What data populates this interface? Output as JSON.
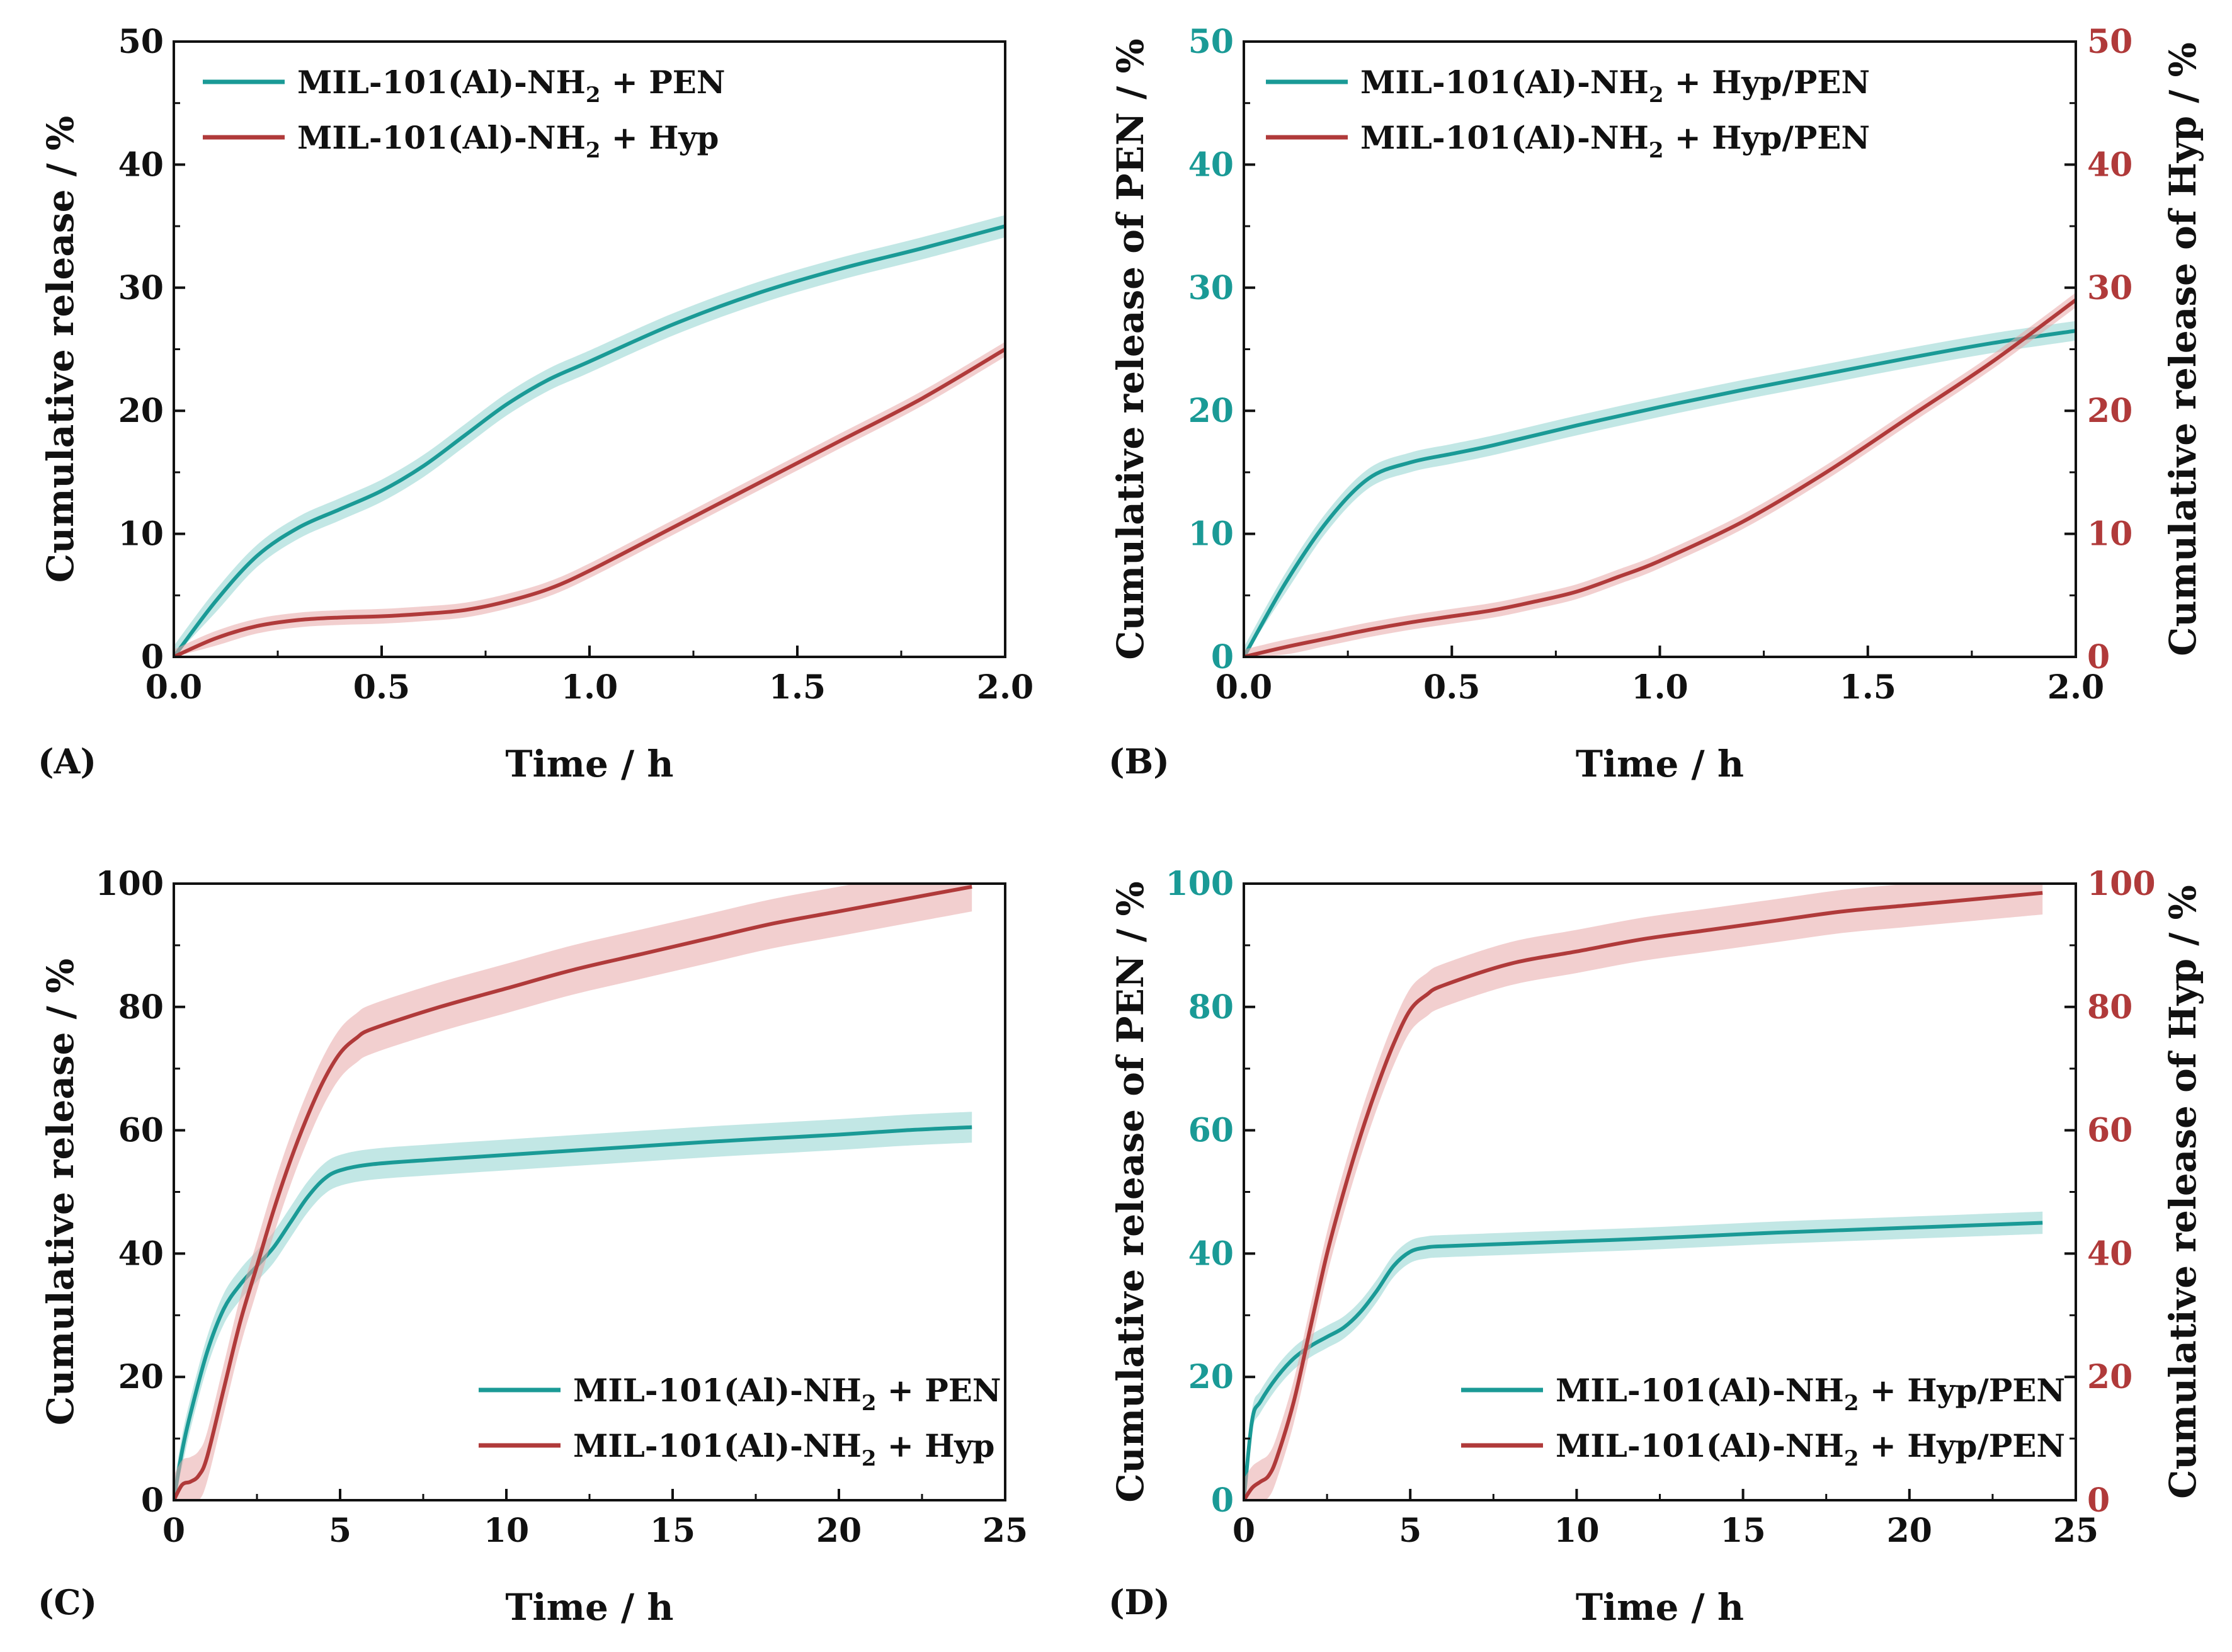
{
  "figure": {
    "colors": {
      "teal": "#1a9a96",
      "red": "#b03a3a",
      "tealBand": "#8fd3d0",
      "redBand": "#e8a8a8",
      "axis": "#111111"
    }
  },
  "chart_data": [
    {
      "id": "A",
      "panel_label": "(A)",
      "type": "line",
      "xlabel": "Time / h",
      "ylabel": "Cumulative release / %",
      "xlim": [
        0,
        2.0
      ],
      "ylim": [
        0,
        50
      ],
      "xticks": [
        "0.0",
        "0.5",
        "1.0",
        "1.5",
        "2.0"
      ],
      "yticks": [
        "0",
        "10",
        "20",
        "30",
        "40",
        "50"
      ],
      "legend_position": "top-left",
      "series": [
        {
          "name": "MIL-101(Al)-NH2 + PEN",
          "legend_parts": [
            "MIL-101(Al)-NH",
            "2",
            " + PEN"
          ],
          "color": "teal",
          "band": 0.9,
          "x": [
            0,
            0.1,
            0.2,
            0.3,
            0.4,
            0.5,
            0.6,
            0.7,
            0.8,
            0.9,
            1.0,
            1.2,
            1.4,
            1.6,
            1.8,
            2.0
          ],
          "y": [
            0,
            4.5,
            8.2,
            10.5,
            12.0,
            13.5,
            15.5,
            18.0,
            20.5,
            22.5,
            24.0,
            27.0,
            29.5,
            31.5,
            33.2,
            35.0
          ]
        },
        {
          "name": "MIL-101(Al)-NH2 + Hyp",
          "legend_parts": [
            "MIL-101(Al)-NH",
            "2",
            " + Hyp"
          ],
          "color": "red",
          "band": 0.6,
          "x": [
            0,
            0.1,
            0.2,
            0.3,
            0.4,
            0.5,
            0.6,
            0.7,
            0.8,
            0.9,
            1.0,
            1.2,
            1.4,
            1.6,
            1.8,
            2.0
          ],
          "y": [
            0,
            1.5,
            2.5,
            3.0,
            3.2,
            3.3,
            3.5,
            3.8,
            4.5,
            5.5,
            7.0,
            10.5,
            14.0,
            17.5,
            21.0,
            25.0
          ]
        }
      ]
    },
    {
      "id": "B",
      "panel_label": "(B)",
      "type": "line",
      "xlabel": "Time / h",
      "ylabel": "Cumulative release of PEN / %",
      "ylabel_right": "Cumulative release of Hyp / %",
      "xlim": [
        0,
        2.0
      ],
      "ylim": [
        0,
        50
      ],
      "ylim_right": [
        0,
        50
      ],
      "xticks": [
        "0.0",
        "0.5",
        "1.0",
        "1.5",
        "2.0"
      ],
      "yticks": [
        "0",
        "10",
        "20",
        "30",
        "40",
        "50"
      ],
      "yticks_right": [
        "0",
        "10",
        "20",
        "30",
        "40",
        "50"
      ],
      "legend_position": "top-left",
      "series": [
        {
          "name": "MIL-101(Al)-NH2 + Hyp/PEN",
          "legend_parts": [
            "MIL-101(Al)-NH",
            "2",
            " + Hyp/PEN"
          ],
          "color": "teal",
          "band": 0.8,
          "x": [
            0,
            0.1,
            0.2,
            0.3,
            0.4,
            0.5,
            0.6,
            0.8,
            1.0,
            1.2,
            1.4,
            1.6,
            1.8,
            2.0
          ],
          "y": [
            0,
            6.0,
            11.0,
            14.5,
            15.8,
            16.5,
            17.2,
            18.8,
            20.3,
            21.7,
            23.0,
            24.3,
            25.5,
            26.5
          ]
        },
        {
          "name": "MIL-101(Al)-NH2 + Hyp/PEN",
          "legend_parts": [
            "MIL-101(Al)-NH",
            "2",
            " + Hyp/PEN"
          ],
          "color": "red",
          "band": 0.6,
          "axis": "right",
          "x": [
            0,
            0.1,
            0.2,
            0.3,
            0.4,
            0.5,
            0.6,
            0.7,
            0.8,
            0.9,
            1.0,
            1.2,
            1.4,
            1.6,
            1.8,
            2.0
          ],
          "y": [
            0,
            0.8,
            1.5,
            2.2,
            2.8,
            3.3,
            3.8,
            4.5,
            5.3,
            6.5,
            7.8,
            11.0,
            15.0,
            19.5,
            24.0,
            29.0
          ]
        }
      ]
    },
    {
      "id": "C",
      "panel_label": "(C)",
      "type": "line",
      "xlabel": "Time / h",
      "ylabel": "Cumulative release / %",
      "xlim": [
        0,
        25
      ],
      "ylim": [
        0,
        100
      ],
      "xticks": [
        "0",
        "5",
        "10",
        "15",
        "20",
        "25"
      ],
      "yticks": [
        "0",
        "20",
        "40",
        "60",
        "80",
        "100"
      ],
      "legend_position": "bottom-right",
      "series": [
        {
          "name": "MIL-101(Al)-NH2 + PEN",
          "legend_parts": [
            "MIL-101(Al)-NH",
            "2",
            " + PEN"
          ],
          "color": "teal",
          "band": 2.5,
          "x": [
            0,
            0.25,
            0.5,
            1,
            1.5,
            2,
            2.5,
            3,
            3.5,
            4,
            4.5,
            5,
            6,
            8,
            10,
            12,
            14,
            16,
            18,
            20,
            22,
            24
          ],
          "y": [
            0,
            8,
            14,
            24,
            31,
            35,
            38,
            41,
            45,
            49,
            52,
            53.5,
            54.5,
            55.3,
            56.0,
            56.7,
            57.4,
            58.1,
            58.7,
            59.3,
            60.0,
            60.5
          ]
        },
        {
          "name": "MIL-101(Al)-NH2 + Hyp",
          "legend_parts": [
            "MIL-101(Al)-NH",
            "2",
            " + Hyp"
          ],
          "color": "red",
          "band": 4,
          "x": [
            0,
            0.25,
            0.5,
            0.75,
            1,
            1.5,
            2,
            2.5,
            3,
            3.5,
            4,
            4.5,
            5,
            5.5,
            6,
            8,
            10,
            12,
            14,
            16,
            18,
            20,
            22,
            24
          ],
          "y": [
            0,
            2.5,
            3,
            4,
            7,
            18,
            29,
            38,
            47,
            55,
            62,
            68,
            72.5,
            75,
            76.5,
            80,
            83,
            86,
            88.5,
            91,
            93.5,
            95.5,
            97.5,
            99.5
          ]
        }
      ]
    },
    {
      "id": "D",
      "panel_label": "(D)",
      "type": "line",
      "xlabel": "Time / h",
      "ylabel": "Cumulative release of PEN / %",
      "ylabel_right": "Cumulative release of Hyp / %",
      "xlim": [
        0,
        25
      ],
      "ylim": [
        0,
        100
      ],
      "ylim_right": [
        0,
        100
      ],
      "xticks": [
        "0",
        "5",
        "10",
        "15",
        "20",
        "25"
      ],
      "yticks": [
        "0",
        "20",
        "40",
        "60",
        "80",
        "100"
      ],
      "yticks_right": [
        "0",
        "20",
        "40",
        "60",
        "80",
        "100"
      ],
      "legend_position": "bottom-right",
      "series": [
        {
          "name": "MIL-101(Al)-NH2 + Hyp/PEN",
          "legend_parts": [
            "MIL-101(Al)-NH",
            "2",
            " + Hyp/PEN"
          ],
          "color": "teal",
          "band": 1.8,
          "x": [
            0,
            0.25,
            0.5,
            1,
            1.5,
            2,
            2.5,
            3,
            3.5,
            4,
            4.5,
            5,
            5.5,
            6,
            8,
            10,
            12,
            14,
            16,
            18,
            20,
            22,
            24
          ],
          "y": [
            0,
            13,
            16,
            20,
            23,
            25,
            26.5,
            28,
            30.5,
            34,
            38,
            40.3,
            41,
            41.2,
            41.6,
            42.0,
            42.4,
            42.9,
            43.4,
            43.8,
            44.2,
            44.6,
            45.0
          ]
        },
        {
          "name": "MIL-101(Al)-NH2 + Hyp/PEN",
          "legend_parts": [
            "MIL-101(Al)-NH",
            "2",
            " + Hyp/PEN"
          ],
          "color": "red",
          "band": 3.5,
          "axis": "right",
          "x": [
            0,
            0.25,
            0.5,
            0.75,
            1,
            1.5,
            2,
            2.5,
            3,
            3.5,
            4,
            4.5,
            5,
            5.5,
            6,
            8,
            10,
            12,
            14,
            16,
            18,
            20,
            22,
            24
          ],
          "y": [
            0,
            2,
            3,
            4,
            7,
            16,
            28,
            40,
            50,
            59,
            67,
            74,
            79.5,
            82,
            83.5,
            87,
            89,
            91,
            92.5,
            94,
            95.5,
            96.5,
            97.5,
            98.5
          ]
        }
      ]
    }
  ]
}
